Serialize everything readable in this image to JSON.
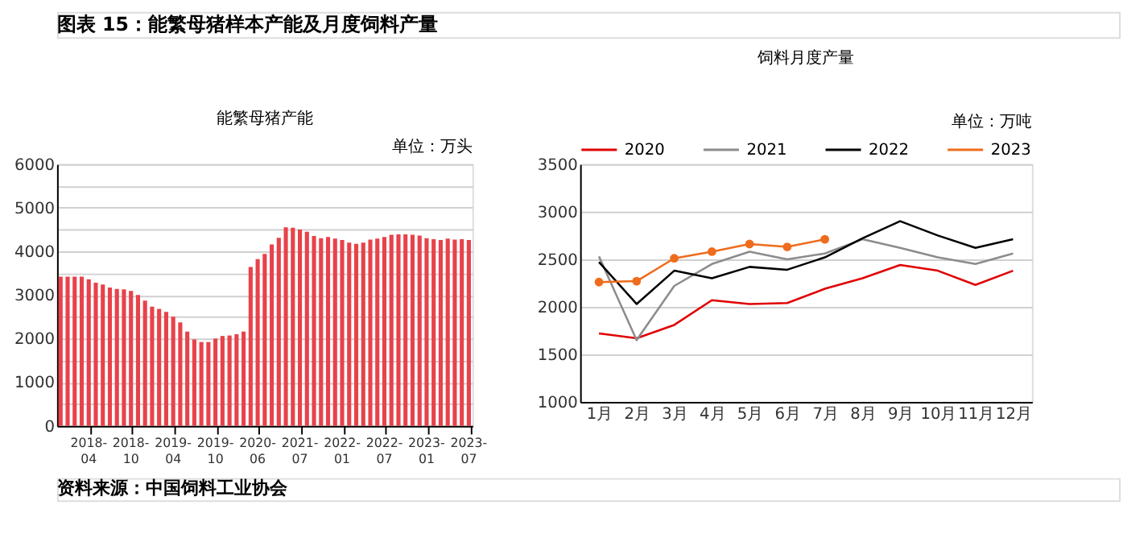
{
  "chart_data": [
    {
      "type": "other",
      "title": "图表 15：能繁母猪样本产能及月度饲料产量",
      "annotations": [
        "资料来源：中国饲料工业协会"
      ]
    },
    {
      "type": "bar",
      "title": "能繁母猪产能",
      "ylabel": "单位：万头",
      "color": "#e8424a",
      "categories": [
        null,
        null,
        null,
        null,
        "2018-04",
        null,
        null,
        null,
        null,
        null,
        "2018-10",
        null,
        null,
        null,
        null,
        null,
        "2019-04",
        null,
        null,
        null,
        null,
        null,
        "2019-10",
        null,
        null,
        null,
        null,
        null,
        "2020-06",
        null,
        null,
        null,
        null,
        null,
        "2021-07",
        null,
        null,
        null,
        null,
        null,
        "2022-01",
        null,
        null,
        null,
        null,
        null,
        "2022-07",
        null,
        null,
        null,
        null,
        null,
        "2023-01",
        null,
        null,
        null,
        null,
        null,
        "2023-07"
      ],
      "values": [
        3420,
        3420,
        3420,
        3420,
        3360,
        3280,
        3240,
        3170,
        3140,
        3130,
        3090,
        3000,
        2870,
        2730,
        2680,
        2610,
        2500,
        2370,
        2160,
        1980,
        1920,
        1920,
        2000,
        2060,
        2070,
        2100,
        2160,
        3640,
        3820,
        3940,
        4160,
        4310,
        4550,
        4540,
        4500,
        4450,
        4350,
        4300,
        4330,
        4290,
        4260,
        4200,
        4170,
        4200,
        4270,
        4290,
        4330,
        4380,
        4390,
        4390,
        4380,
        4360,
        4300,
        4280,
        4260,
        4290,
        4270,
        4280,
        4260
      ],
      "ylim": [
        0,
        6000
      ],
      "yticks": [
        0,
        {
          "value": 500,
          "label": null
        },
        1000,
        {
          "value": 1500,
          "label": null
        },
        2000,
        {
          "value": 2500,
          "label": null
        },
        3000,
        {
          "value": 3500,
          "label": null
        },
        4000,
        {
          "value": 4500,
          "label": null
        },
        5000,
        {
          "value": 5500,
          "label": null
        },
        6000
      ],
      "grid": "y",
      "legend": false
    },
    {
      "type": "line",
      "title": "饲料月度产量",
      "ylabel": "单位：万吨",
      "categories": [
        "1月",
        "2月",
        "3月",
        "4月",
        "5月",
        "6月",
        "7月",
        "8月",
        "9月",
        "10月",
        "11月",
        "12月"
      ],
      "series": [
        {
          "name": "2020",
          "color": "#e00000",
          "values": [
            1720,
            1670,
            1810,
            2070,
            2030,
            2040,
            2190,
            2300,
            2440,
            2380,
            2230,
            2380
          ]
        },
        {
          "name": "2021",
          "color": "#8c8c8c",
          "values": [
            2530,
            1650,
            2220,
            2450,
            2580,
            2500,
            2560,
            2710,
            2620,
            2520,
            2450,
            2560
          ]
        },
        {
          "name": "2022",
          "color": "#000000",
          "values": [
            2470,
            2030,
            2380,
            2300,
            2420,
            2390,
            2520,
            2720,
            2900,
            2750,
            2620,
            2710
          ]
        },
        {
          "name": "2023",
          "color": "#ee6c1c",
          "marker": "circle",
          "values": [
            2260,
            2270,
            2510,
            2580,
            2660,
            2630,
            2710,
            null,
            null,
            null,
            null,
            null
          ]
        }
      ],
      "ylim": [
        1000,
        3500
      ],
      "yticks": [
        1000,
        1500,
        2000,
        2500,
        3000,
        3500
      ],
      "grid": "y",
      "legend": "top",
      "line_style": "solid"
    }
  ]
}
